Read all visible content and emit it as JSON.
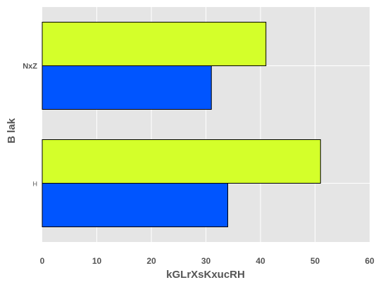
{
  "chart_data": {
    "type": "bar",
    "orientation": "horizontal",
    "categories": [
      "H",
      "NxZ"
    ],
    "series": [
      {
        "color": "#0055ff",
        "values": [
          34,
          31
        ]
      },
      {
        "color": "#d4ff2a",
        "values": [
          51,
          41
        ]
      }
    ],
    "xlabel": "kGLrXsKxucRH",
    "ylabel": "B  lak",
    "xlim": [
      0,
      60
    ],
    "xticks": [
      0,
      10,
      20,
      30,
      40,
      50,
      60
    ],
    "grid": true,
    "background": "#e5e5e5",
    "grid_color": "#ffffff"
  }
}
